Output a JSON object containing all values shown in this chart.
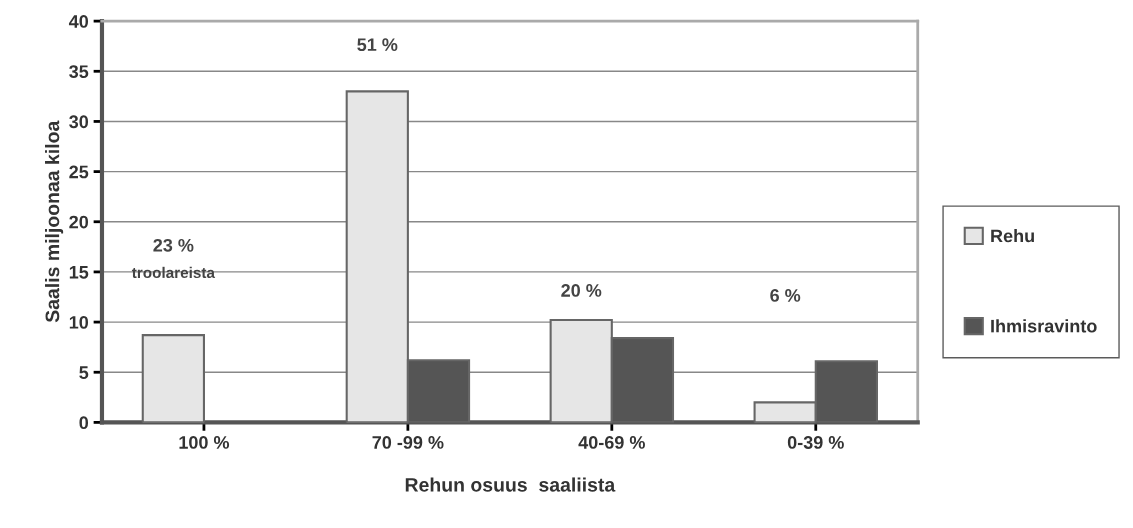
{
  "chart_data": {
    "type": "bar",
    "xlabel": "Rehun osuus  saaliista",
    "ylabel": "Saalis miljoonaa kiloa",
    "categories": [
      "100 %",
      "70 -99 %",
      "40-69 %",
      "0-39 %"
    ],
    "series": [
      {
        "name": "Rehu",
        "color": "#e6e6e6",
        "values": [
          8.7,
          33.0,
          10.2,
          2.0
        ]
      },
      {
        "name": "Ihmisravinto",
        "color": "#555555",
        "values": [
          null,
          6.2,
          8.4,
          6.1
        ]
      }
    ],
    "ylim": [
      0,
      40
    ],
    "yticks": [
      0,
      5,
      10,
      15,
      20,
      25,
      30,
      35,
      40
    ],
    "grid": "y",
    "legend": "right",
    "annotations": [
      "23 %",
      "troolareista",
      "51 %",
      "20 %",
      "6 %"
    ]
  }
}
